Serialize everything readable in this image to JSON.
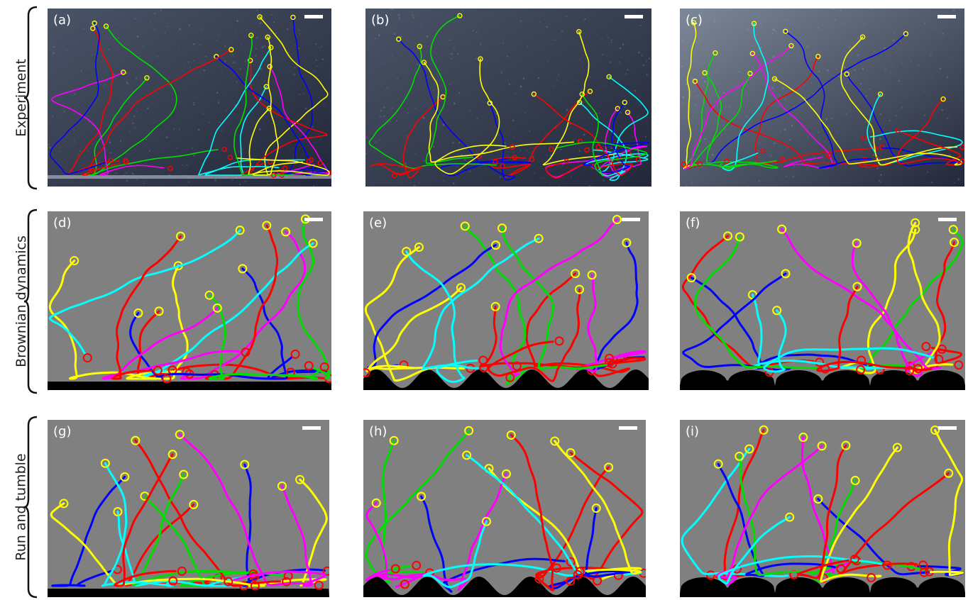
{
  "rows": [
    {
      "label": "Experiment"
    },
    {
      "label": "Brownian dynamics"
    },
    {
      "label": "Run and tumble"
    }
  ],
  "panels": [
    {
      "label": "(a)",
      "kind": "experiment",
      "wall": "flat"
    },
    {
      "label": "(b)",
      "kind": "experiment",
      "wall": "wavy"
    },
    {
      "label": "(c)",
      "kind": "experiment",
      "wall": "cups"
    },
    {
      "label": "(d)",
      "kind": "simulation",
      "wall": "flat"
    },
    {
      "label": "(e)",
      "kind": "simulation",
      "wall": "wavy"
    },
    {
      "label": "(f)",
      "kind": "simulation",
      "wall": "cups"
    },
    {
      "label": "(g)",
      "kind": "simulation",
      "wall": "flat"
    },
    {
      "label": "(h)",
      "kind": "simulation",
      "wall": "wavy"
    },
    {
      "label": "(i)",
      "kind": "simulation",
      "wall": "cups"
    }
  ],
  "colors": {
    "trajectories": [
      "#ff0000",
      "#0000ff",
      "#00dd00",
      "#ffff00",
      "#ff00ff",
      "#00ffff"
    ],
    "start_marker": "#ffff00",
    "end_marker": "#ff0000",
    "sim_background": "#808080",
    "exp_background": "#3a4252",
    "wall": "#000000",
    "scale_bar": "#ffffff"
  }
}
